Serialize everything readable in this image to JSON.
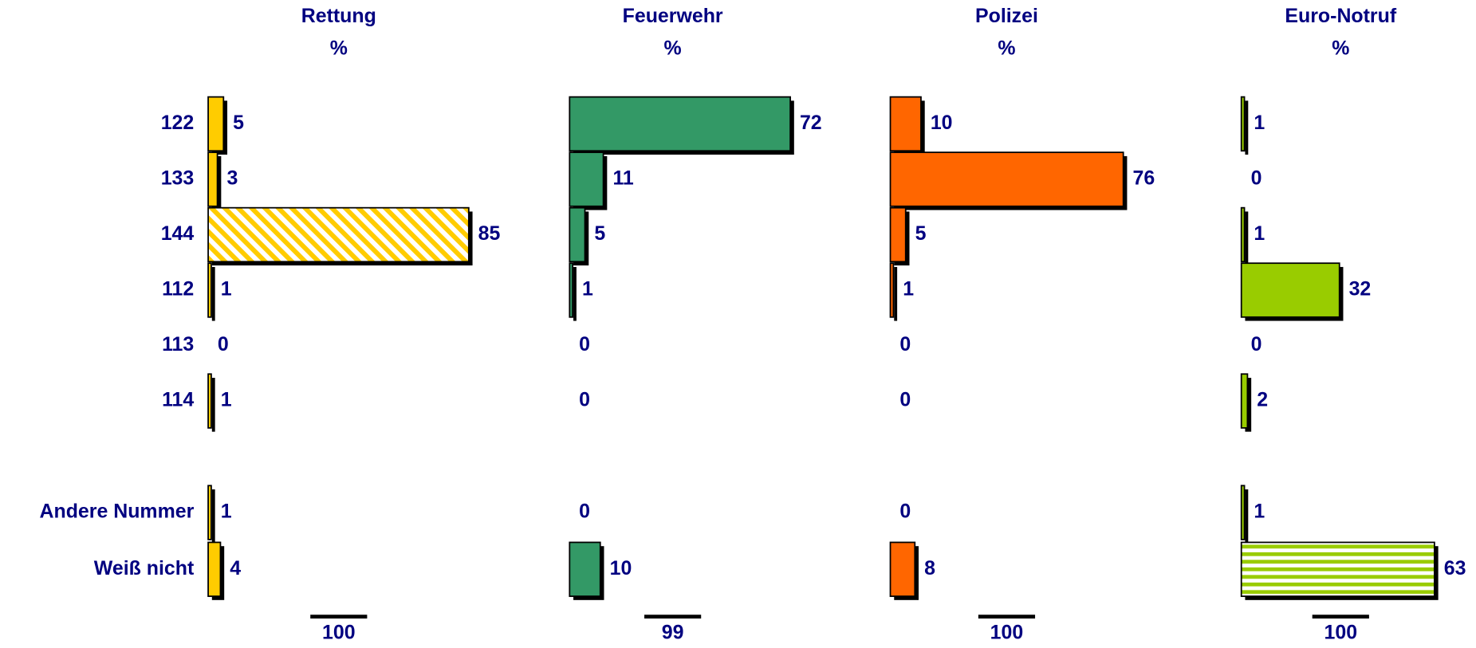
{
  "chart_data": {
    "type": "bar",
    "categories": [
      "122",
      "133",
      "144",
      "112",
      "113",
      "114",
      "Andere Nummer",
      "Weiß nicht"
    ],
    "series": [
      {
        "name": "Rettung",
        "unit": "%",
        "color": "#ffcc00",
        "values": [
          5,
          3,
          85,
          1,
          0,
          1,
          1,
          4
        ],
        "total": 100,
        "pattern_bar": 2,
        "pattern": "diagonal"
      },
      {
        "name": "Feuerwehr",
        "unit": "%",
        "color": "#339966",
        "values": [
          72,
          11,
          5,
          1,
          0,
          0,
          0,
          10
        ],
        "total": 99
      },
      {
        "name": "Polizei",
        "unit": "%",
        "color": "#ff6600",
        "values": [
          10,
          76,
          5,
          1,
          0,
          0,
          0,
          8
        ],
        "total": 100
      },
      {
        "name": "Euro-Notruf",
        "unit": "%",
        "color": "#99cc00",
        "values": [
          1,
          0,
          1,
          32,
          0,
          2,
          1,
          63
        ],
        "total": 100,
        "pattern_bar": 7,
        "pattern": "horizontal"
      }
    ]
  }
}
